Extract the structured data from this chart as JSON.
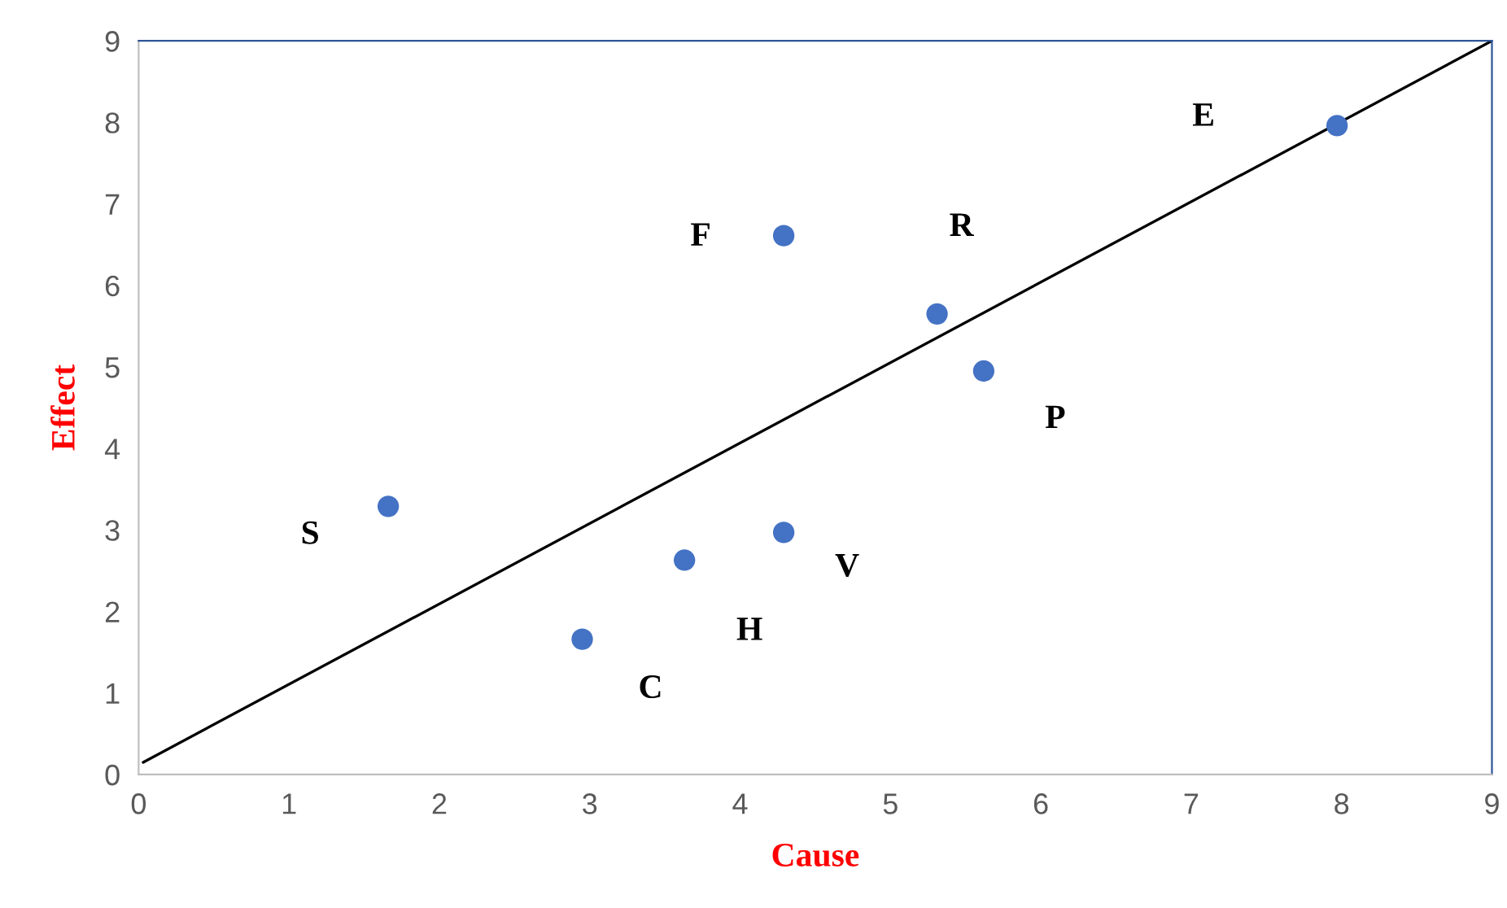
{
  "chart_data": {
    "type": "scatter",
    "xlabel": "Cause",
    "ylabel": "Effect",
    "xlim": [
      0,
      9
    ],
    "ylim": [
      0,
      9
    ],
    "xticks": [
      0,
      1,
      2,
      3,
      4,
      5,
      6,
      7,
      8,
      9
    ],
    "yticks": [
      0,
      1,
      2,
      3,
      4,
      5,
      6,
      7,
      8,
      9
    ],
    "grid": false,
    "series": [
      {
        "marker": "circle",
        "color": "#4472c4",
        "x": [
          1.66,
          2.95,
          3.63,
          4.29,
          4.29,
          5.31,
          5.62,
          7.97
        ],
        "values": [
          3.29,
          1.66,
          2.63,
          2.97,
          6.61,
          5.65,
          4.95,
          7.96
        ]
      },
      {
        "type": "line",
        "color": "#000000",
        "x": [
          0.03,
          9
        ],
        "values": [
          0.15,
          9
        ]
      }
    ],
    "annotations": [
      "S",
      "C",
      "H",
      "V",
      "F",
      "R",
      "P",
      "E"
    ]
  }
}
